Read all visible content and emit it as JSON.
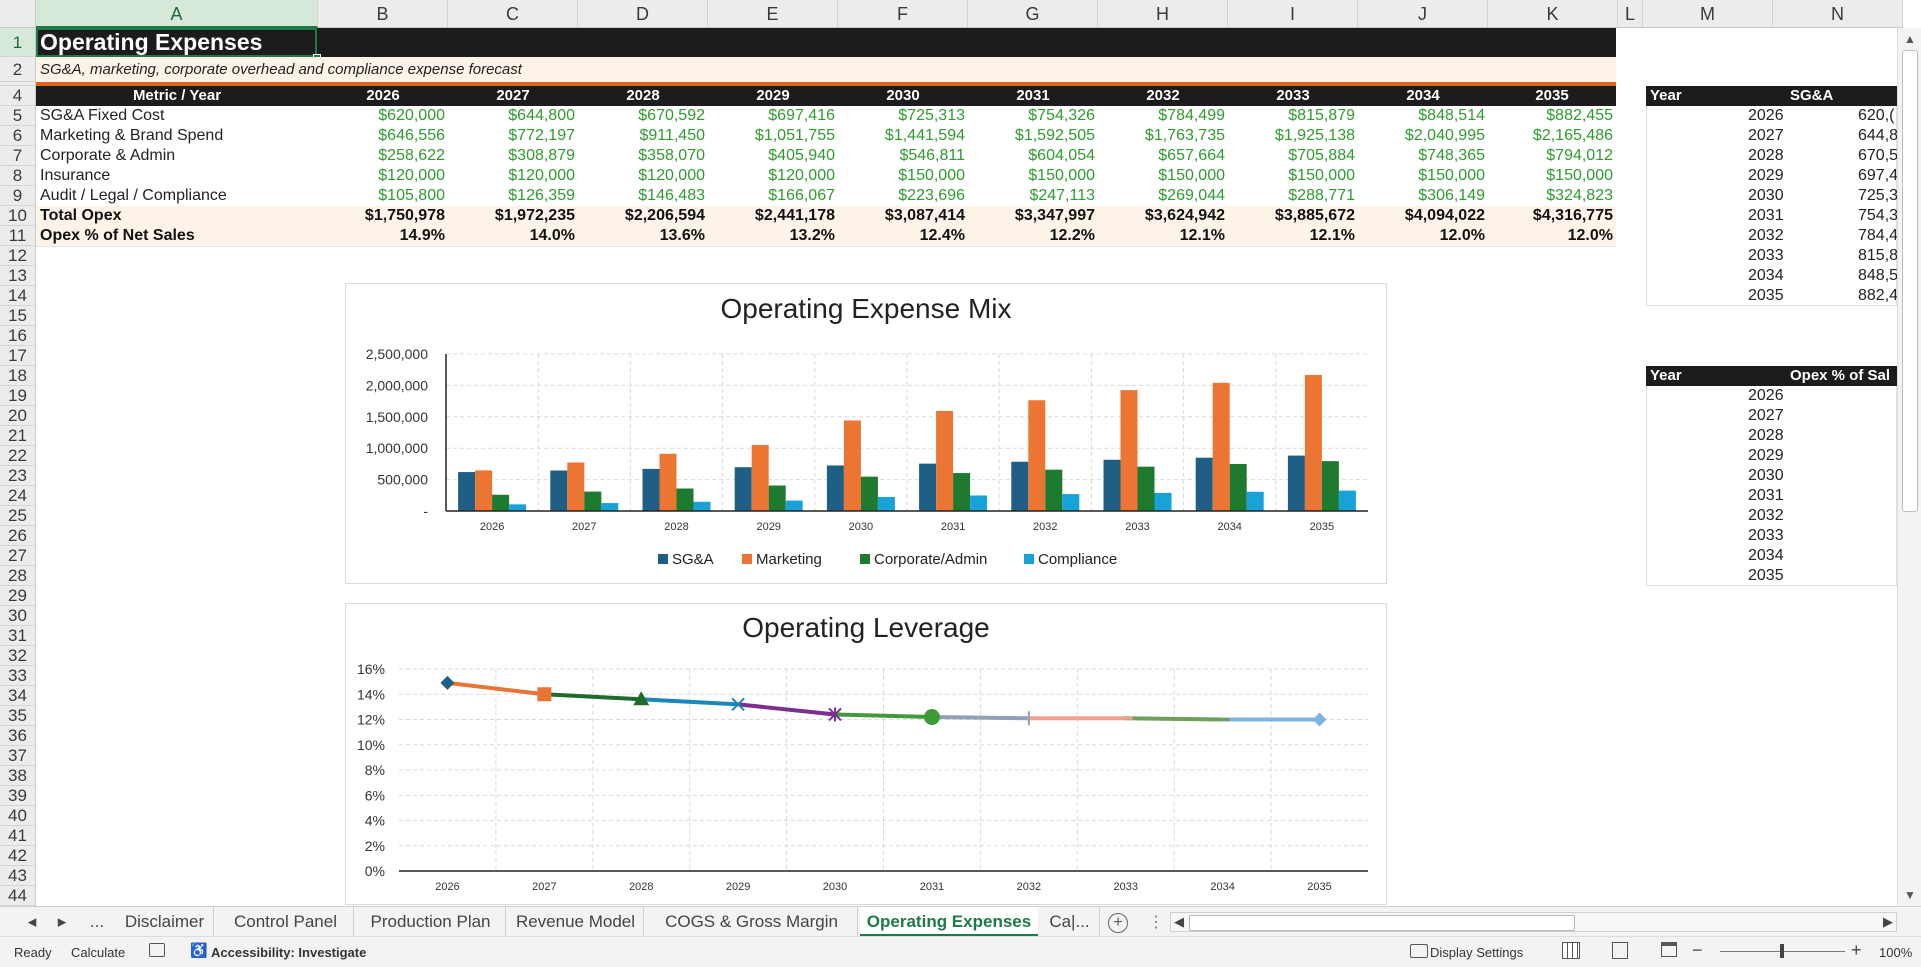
{
  "columns": [
    "A",
    "B",
    "C",
    "D",
    "E",
    "F",
    "G",
    "H",
    "I",
    "J",
    "K",
    "L",
    "M",
    "N"
  ],
  "rows": [
    "1",
    "2",
    "3",
    "4",
    "5",
    "6",
    "7",
    "8",
    "9",
    "10",
    "11",
    "12",
    "13",
    "14",
    "15",
    "16",
    "17",
    "18",
    "19",
    "20",
    "21",
    "22",
    "23",
    "24",
    "25",
    "26",
    "27",
    "28",
    "29",
    "30",
    "31",
    "32",
    "33",
    "34",
    "35",
    "36",
    "37",
    "38",
    "39",
    "40",
    "41",
    "42",
    "43",
    "44"
  ],
  "title": "Operating Expenses",
  "subtitle": "SG&A, marketing, corporate overhead and compliance expense forecast",
  "table": {
    "header": [
      "Metric / Year",
      "2026",
      "2027",
      "2028",
      "2029",
      "2030",
      "2031",
      "2032",
      "2033",
      "2034",
      "2035"
    ],
    "rows": [
      {
        "label": "SG&A Fixed Cost",
        "values": [
          "$620,000",
          "$644,800",
          "$670,592",
          "$697,416",
          "$725,313",
          "$754,326",
          "$784,499",
          "$815,879",
          "$848,514",
          "$882,455"
        ]
      },
      {
        "label": "Marketing & Brand Spend",
        "values": [
          "$646,556",
          "$772,197",
          "$911,450",
          "$1,051,755",
          "$1,441,594",
          "$1,592,505",
          "$1,763,735",
          "$1,925,138",
          "$2,040,995",
          "$2,165,486"
        ]
      },
      {
        "label": "Corporate & Admin",
        "values": [
          "$258,622",
          "$308,879",
          "$358,070",
          "$405,940",
          "$546,811",
          "$604,054",
          "$657,664",
          "$705,884",
          "$748,365",
          "$794,012"
        ]
      },
      {
        "label": "Insurance",
        "values": [
          "$120,000",
          "$120,000",
          "$120,000",
          "$120,000",
          "$150,000",
          "$150,000",
          "$150,000",
          "$150,000",
          "$150,000",
          "$150,000"
        ]
      },
      {
        "label": "Audit / Legal / Compliance",
        "values": [
          "$105,800",
          "$126,359",
          "$146,483",
          "$166,067",
          "$223,696",
          "$247,113",
          "$269,044",
          "$288,771",
          "$306,149",
          "$324,823"
        ]
      }
    ],
    "total": {
      "label": "Total Opex",
      "values": [
        "$1,750,978",
        "$1,972,235",
        "$2,206,594",
        "$2,441,178",
        "$3,087,414",
        "$3,347,997",
        "$3,624,942",
        "$3,885,672",
        "$4,094,022",
        "$4,316,775"
      ]
    },
    "pct": {
      "label": "Opex % of Net Sales",
      "values": [
        "14.9%",
        "14.0%",
        "13.6%",
        "13.2%",
        "12.4%",
        "12.2%",
        "12.1%",
        "12.1%",
        "12.0%",
        "12.0%"
      ]
    }
  },
  "side_table1": {
    "header": [
      "Year",
      "SG&A"
    ],
    "rows": [
      [
        "2026",
        "620,("
      ],
      [
        "2027",
        "644,8"
      ],
      [
        "2028",
        "670,5"
      ],
      [
        "2029",
        "697,4"
      ],
      [
        "2030",
        "725,3"
      ],
      [
        "2031",
        "754,3"
      ],
      [
        "2032",
        "784,4"
      ],
      [
        "2033",
        "815,8"
      ],
      [
        "2034",
        "848,5"
      ],
      [
        "2035",
        "882,4"
      ]
    ]
  },
  "side_table2": {
    "header": [
      "Year",
      "Opex % of Sal"
    ],
    "rows": [
      [
        "2026"
      ],
      [
        "2027"
      ],
      [
        "2028"
      ],
      [
        "2029"
      ],
      [
        "2030"
      ],
      [
        "2031"
      ],
      [
        "2032"
      ],
      [
        "2033"
      ],
      [
        "2034"
      ],
      [
        "2035"
      ]
    ]
  },
  "chart_data": [
    {
      "type": "bar",
      "title": "Operating Expense Mix",
      "categories": [
        "2026",
        "2027",
        "2028",
        "2029",
        "2030",
        "2031",
        "2032",
        "2033",
        "2034",
        "2035"
      ],
      "ylim": [
        0,
        2500000
      ],
      "yticks": [
        "-",
        "500,000",
        "1,000,000",
        "1,500,000",
        "2,000,000",
        "2,500,000"
      ],
      "legend_position": "bottom",
      "grid": true,
      "series": [
        {
          "name": "SG&A",
          "color": "#1f5f85",
          "values": [
            620000,
            644800,
            670592,
            697416,
            725313,
            754326,
            784499,
            815879,
            848514,
            882455
          ]
        },
        {
          "name": "Marketing",
          "color": "#ed7534",
          "values": [
            646556,
            772197,
            911450,
            1051755,
            1441594,
            1592505,
            1763735,
            1925138,
            2040995,
            2165486
          ]
        },
        {
          "name": "Corporate/Admin",
          "color": "#1e7a2e",
          "values": [
            258622,
            308879,
            358070,
            405940,
            546811,
            604054,
            657664,
            705884,
            748365,
            794012
          ]
        },
        {
          "name": "Compliance",
          "color": "#17a2d8",
          "values": [
            105800,
            126359,
            146483,
            166067,
            223696,
            247113,
            269044,
            288771,
            306149,
            324823
          ]
        }
      ]
    },
    {
      "type": "line",
      "title": "Operating Leverage",
      "categories": [
        "2026",
        "2027",
        "2028",
        "2029",
        "2030",
        "2031",
        "2032",
        "2033",
        "2034",
        "2035"
      ],
      "ylim": [
        0,
        0.16
      ],
      "yticks": [
        "0%",
        "2%",
        "4%",
        "6%",
        "8%",
        "10%",
        "12%",
        "14%",
        "16%"
      ],
      "grid": true,
      "values": [
        0.149,
        0.14,
        0.136,
        0.132,
        0.124,
        0.122,
        0.121,
        0.121,
        0.12,
        0.12
      ],
      "segment_colors": [
        "#e87435",
        "#1e6b2b",
        "#1a88b8",
        "#7b2f90",
        "#3f9a3a",
        "#8ea1b8",
        "#f0a190",
        "#6ea05a",
        "#7fb3e0"
      ],
      "marker_colors": [
        "#1f5f85",
        "#e87435",
        "#1e6b2b",
        "#1a88b8",
        "#7b2f90",
        "#3f9a3a",
        "#8ea1b8",
        "#f0a190",
        "#6ea05a",
        "#7fb3e0"
      ],
      "markers": [
        "diamond",
        "square",
        "triangle",
        "x",
        "star",
        "circle",
        "plus",
        "dash",
        "dash",
        "diamond"
      ]
    }
  ],
  "tabs": [
    "Disclaimer",
    "Control Panel",
    "Production Plan",
    "Revenue Model",
    "COGS & Gross Margin",
    "Operating Expenses",
    "Ca|..."
  ],
  "active_tab": "Operating Expenses",
  "tab_nav": {
    "prev": "◂",
    "next": "▸",
    "more": "...",
    "add": "+"
  },
  "status": {
    "ready": "Ready",
    "calculate": "Calculate",
    "accessibility": "Accessibility: Investigate",
    "display": "Display Settings",
    "zoom": "100%"
  },
  "colors": {
    "accent": "#1f7a45",
    "dark_header": "#1c1c1c",
    "orange_rule": "#d9651f",
    "green_value": "#2e9b2e",
    "total_fill": "#fdf3e8"
  }
}
